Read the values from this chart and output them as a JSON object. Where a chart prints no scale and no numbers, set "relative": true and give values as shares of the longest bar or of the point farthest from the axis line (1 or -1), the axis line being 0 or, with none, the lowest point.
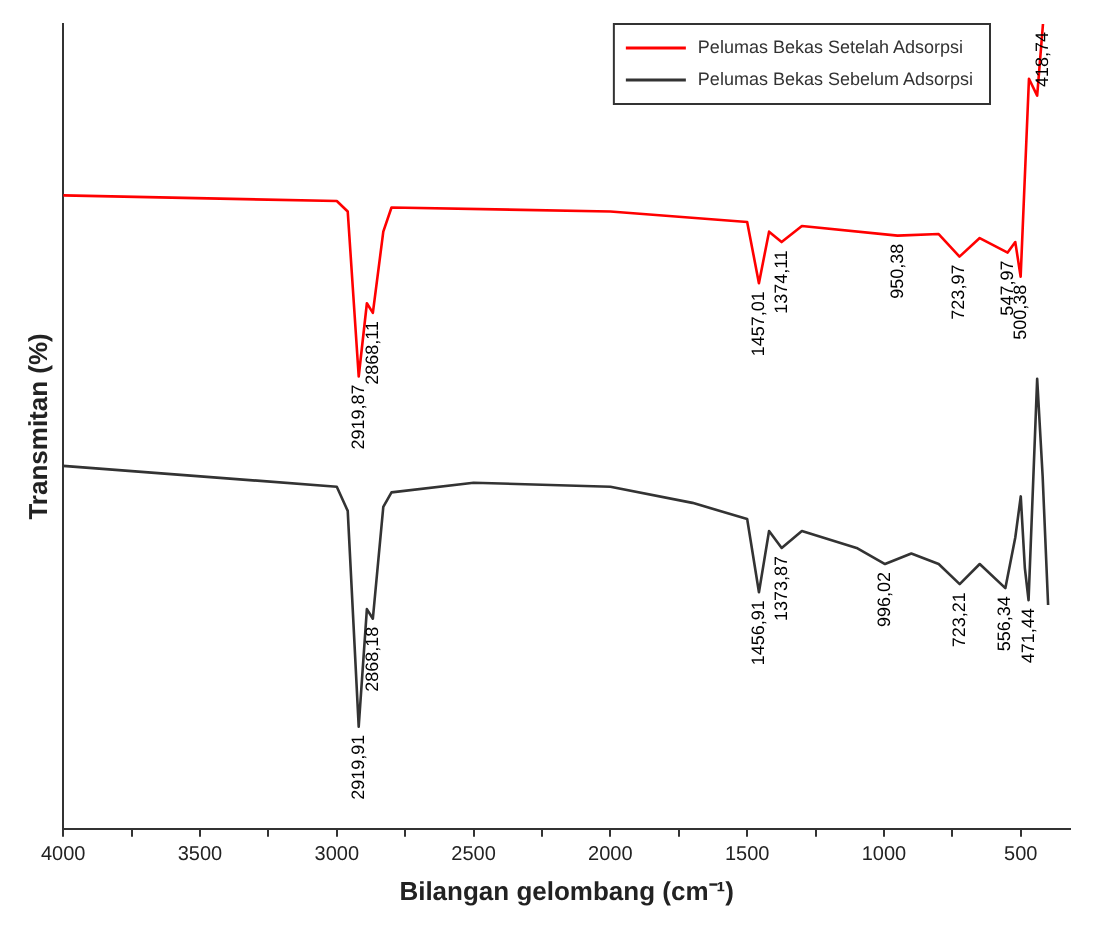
{
  "chart_data": {
    "type": "line",
    "relative": true,
    "xlabel": "Bilangan gelombang (cm⁻¹)",
    "ylabel": "Transmitan (%)",
    "xlim": [
      4000,
      320
    ],
    "xticks": [
      4000,
      {
        "value": 3750,
        "label": null
      },
      3500,
      {
        "value": 3250,
        "label": null
      },
      3000,
      {
        "value": 2750,
        "label": null
      },
      2500,
      {
        "value": 2250,
        "label": null
      },
      2000,
      {
        "value": 1750,
        "label": null
      },
      1500,
      {
        "value": 1250,
        "label": null
      },
      1000,
      {
        "value": 750,
        "label": null
      },
      500
    ],
    "grid": false,
    "legend": "top right",
    "marker": "none",
    "line_style": "solid",
    "series": [
      {
        "name": "Pelumas Bekas Setelah Adsorpsi",
        "color": "#ff0000",
        "x": [
          4000,
          3000,
          2960,
          2919.87,
          2890,
          2868.11,
          2830,
          2800,
          2000,
          1500,
          1457.01,
          1420,
          1374.11,
          1300,
          950.38,
          800,
          723.97,
          650,
          547.97,
          520,
          500.38,
          470,
          440,
          418.74
        ],
        "values": [
          0.787,
          0.78,
          0.767,
          0.562,
          0.653,
          0.641,
          0.742,
          0.772,
          0.767,
          0.754,
          0.678,
          0.742,
          0.729,
          0.749,
          0.737,
          0.739,
          0.711,
          0.734,
          0.716,
          0.729,
          0.686,
          0.932,
          0.911,
          1.0
        ]
      },
      {
        "name": "Pelumas Bekas Sebelum Adsorpsi",
        "color": "#333333",
        "x": [
          4000,
          3000,
          2960,
          2919.91,
          2890,
          2868.18,
          2830,
          2800,
          2500,
          2000,
          1700,
          1500,
          1456.91,
          1420,
          1373.87,
          1300,
          1100,
          996.02,
          900,
          800,
          723.21,
          650,
          556.34,
          520,
          500,
          485,
          471.44,
          440,
          420,
          400
        ],
        "values": [
          0.451,
          0.425,
          0.395,
          0.127,
          0.273,
          0.261,
          0.4,
          0.418,
          0.43,
          0.425,
          0.405,
          0.385,
          0.294,
          0.37,
          0.349,
          0.37,
          0.349,
          0.329,
          0.342,
          0.329,
          0.304,
          0.329,
          0.299,
          0.362,
          0.413,
          0.324,
          0.284,
          0.559,
          0.438,
          0.278
        ]
      }
    ],
    "annotations": [
      {
        "text": "2919,87",
        "x": 2919.87,
        "y": 0.562
      },
      {
        "text": "2868,11",
        "x": 2868.11,
        "y": 0.641
      },
      {
        "text": "1457,01",
        "x": 1457.01,
        "y": 0.678
      },
      {
        "text": "1374,11",
        "x": 1374.11,
        "y": 0.729
      },
      {
        "text": "950,38",
        "x": 950.38,
        "y": 0.737
      },
      {
        "text": "723,97",
        "x": 723.97,
        "y": 0.711
      },
      {
        "text": "547,97",
        "x": 547.97,
        "y": 0.716
      },
      {
        "text": "500,38",
        "x": 500.38,
        "y": 0.686
      },
      {
        "text": "418,74",
        "x": 418.74,
        "y": 1.0
      },
      {
        "text": "2919,91",
        "x": 2919.91,
        "y": 0.127
      },
      {
        "text": "2868,18",
        "x": 2868.18,
        "y": 0.261
      },
      {
        "text": "1456,91",
        "x": 1456.91,
        "y": 0.294
      },
      {
        "text": "1373,87",
        "x": 1373.87,
        "y": 0.349
      },
      {
        "text": "996,02",
        "x": 996.02,
        "y": 0.329
      },
      {
        "text": "723,21",
        "x": 723.21,
        "y": 0.304
      },
      {
        "text": "556,34",
        "x": 556.34,
        "y": 0.299
      },
      {
        "text": "471,44",
        "x": 471.44,
        "y": 0.284
      }
    ]
  }
}
